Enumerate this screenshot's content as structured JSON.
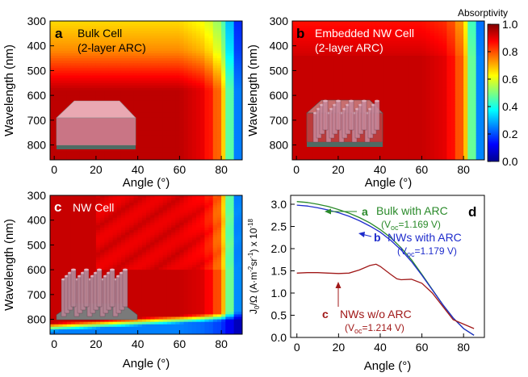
{
  "figure": {
    "colorbar": {
      "title": "Absorptivity",
      "ticks": [
        "1.0",
        "0.8",
        "0.6",
        "0.4",
        "0.2",
        "0.0"
      ]
    }
  },
  "chart_data": [
    {
      "type": "heatmap",
      "panel": "a",
      "title": "Bulk Cell",
      "subtitle": "(2-layer ARC)",
      "xlabel": "Angle (°)",
      "ylabel": "Wavelength (nm)",
      "xticks": [
        "0",
        "20",
        "40",
        "60",
        "80"
      ],
      "yticks": [
        "300",
        "400",
        "500",
        "600",
        "700",
        "800"
      ],
      "xlim": [
        -2,
        90
      ],
      "ylim": [
        300,
        860
      ],
      "zlim": [
        0,
        1
      ],
      "colormap": "jet",
      "model": "bulk",
      "note": "absorptivity map; high (~0.8-1.0) across most wavelengths, drops toward 90°"
    },
    {
      "type": "heatmap",
      "panel": "b",
      "title": "Embedded NW Cell",
      "subtitle": "(2-layer ARC)",
      "xlabel": "Angle (°)",
      "ylabel": "Wavelength (nm)",
      "xticks": [
        "0",
        "20",
        "40",
        "60",
        "80"
      ],
      "yticks": [
        "300",
        "400",
        "500",
        "600",
        "700",
        "800"
      ],
      "xlim": [
        -2,
        90
      ],
      "ylim": [
        300,
        860
      ],
      "zlim": [
        0,
        1
      ],
      "colormap": "jet",
      "model": "embedded"
    },
    {
      "type": "heatmap",
      "panel": "c",
      "title": "NW Cell",
      "subtitle": "",
      "xlabel": "Angle (°)",
      "ylabel": "Wavelength (nm)",
      "xticks": [
        "0",
        "20",
        "40",
        "60",
        "80"
      ],
      "yticks": [
        "300",
        "400",
        "500",
        "600",
        "700",
        "800"
      ],
      "xlim": [
        -2,
        90
      ],
      "ylim": [
        300,
        860
      ],
      "zlim": [
        0,
        1
      ],
      "colormap": "jet",
      "model": "nw"
    },
    {
      "type": "line",
      "panel": "d",
      "xlabel": "Angle (°)",
      "ylabel_main": "J",
      "ylabel_sub": "0",
      "ylabel_rest": "/Ω (A·m",
      "ylabel_sup1": "-2",
      "ylabel_mid": "sr",
      "ylabel_sup2": "-1",
      "ylabel_end": ") x 10",
      "ylabel_exp": "-18",
      "xticks": [
        "0",
        "20",
        "40",
        "60",
        "80"
      ],
      "yticks": [
        "0.0",
        "0.5",
        "1.0",
        "1.5",
        "2.0",
        "2.5",
        "3.0"
      ],
      "xlim": [
        -3,
        90
      ],
      "ylim": [
        0,
        3.2
      ],
      "series": [
        {
          "name": "Bulk with ARC",
          "tag": "a",
          "voc": "(V",
          "voc_sub": "oc",
          "voc_val": "=1.169 V)",
          "color": "#2a8a2a",
          "x": [
            0,
            5,
            10,
            15,
            20,
            25,
            30,
            35,
            40,
            45,
            50,
            55,
            60,
            65,
            70,
            75,
            80,
            85
          ],
          "y": [
            3.06,
            3.04,
            3.0,
            2.95,
            2.88,
            2.8,
            2.7,
            2.58,
            2.43,
            2.25,
            2.02,
            1.75,
            1.42,
            1.08,
            0.74,
            0.44,
            0.2,
            0.05
          ]
        },
        {
          "name": "NWs with ARC",
          "tag": "b",
          "voc": "(V",
          "voc_sub": "oc",
          "voc_val": "=1.179 V)",
          "color": "#1e2ccc",
          "x": [
            0,
            5,
            10,
            15,
            20,
            25,
            30,
            35,
            40,
            45,
            50,
            55,
            60,
            65,
            70,
            75,
            80,
            85
          ],
          "y": [
            2.98,
            2.96,
            2.92,
            2.87,
            2.81,
            2.73,
            2.63,
            2.51,
            2.37,
            2.19,
            1.97,
            1.71,
            1.4,
            1.07,
            0.74,
            0.44,
            0.2,
            0.05
          ]
        },
        {
          "name": "NWs w/o ARC",
          "tag": "c",
          "voc": "(V",
          "voc_sub": "oc",
          "voc_val": "=1.214 V)",
          "color": "#a01818",
          "x": [
            0,
            5,
            10,
            15,
            20,
            25,
            30,
            35,
            38,
            40,
            45,
            48,
            50,
            55,
            60,
            65,
            70,
            75,
            80,
            85
          ],
          "y": [
            1.45,
            1.46,
            1.46,
            1.45,
            1.44,
            1.45,
            1.52,
            1.62,
            1.65,
            1.6,
            1.42,
            1.32,
            1.3,
            1.31,
            1.22,
            1.0,
            0.7,
            0.4,
            0.3,
            0.2
          ]
        }
      ]
    }
  ]
}
